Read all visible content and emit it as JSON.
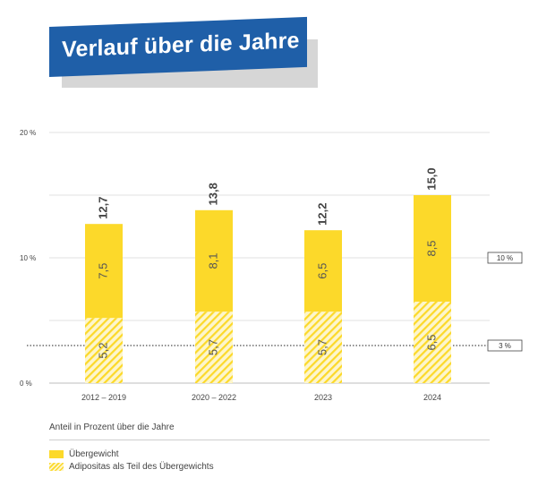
{
  "title": "Verlauf über die Jahre",
  "caption": "Anteil in Prozent über die Jahre",
  "colors": {
    "title_bg": "#1f5fa8",
    "bar": "#fcd92a",
    "hatch_bg": "#fdf6cc"
  },
  "chart_data": {
    "type": "bar",
    "stacked": true,
    "categories": [
      "2012 – 2019",
      "2020 – 2022",
      "2023",
      "2024"
    ],
    "series": [
      {
        "name": "Adipositas als Teil des Übergewichts",
        "values": [
          5.2,
          5.7,
          5.7,
          6.5
        ],
        "labels": [
          "5,2",
          "5,7",
          "5,7",
          "6,5"
        ]
      },
      {
        "name": "Übergewicht",
        "values": [
          7.5,
          8.1,
          6.5,
          8.5
        ],
        "labels": [
          "7,5",
          "8,1",
          "6,5",
          "8,5"
        ]
      }
    ],
    "totals": [
      12.7,
      13.8,
      12.2,
      15.0
    ],
    "total_labels": [
      "12,7",
      "13,8",
      "12,2",
      "15,0"
    ],
    "ylim": [
      0,
      20
    ],
    "yticks": [
      0,
      10,
      20
    ],
    "ytick_labels": [
      "0 %",
      "10 %",
      "20 %"
    ],
    "grid": true,
    "reference_lines": [
      {
        "value": 10,
        "label": "10 %",
        "style": "solid"
      },
      {
        "value": 3,
        "label": "3 %",
        "style": "dotted"
      }
    ],
    "legend": [
      {
        "label": "Übergewicht",
        "style": "solid"
      },
      {
        "label": "Adipositas als Teil des Übergewichts",
        "style": "hatched"
      }
    ],
    "legend_position": "bottom-left"
  }
}
